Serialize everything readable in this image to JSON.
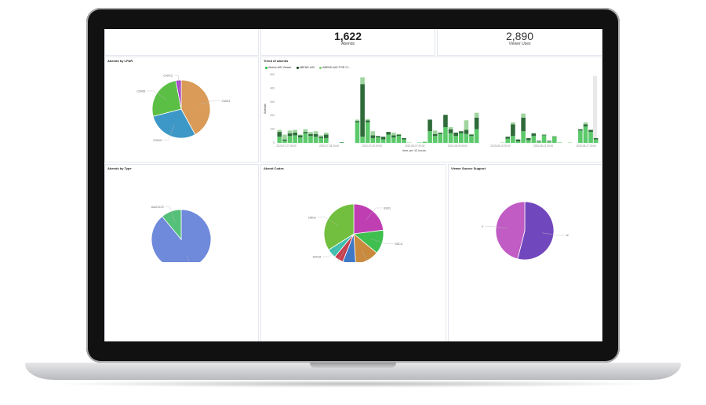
{
  "metrics": [
    {
      "value": "1,622",
      "label": "Abends"
    },
    {
      "value": "2,890",
      "label": "Viewer Uses"
    }
  ],
  "colors": {
    "viewer": "#5cc96b",
    "aid": "#2f6b3a",
    "ci": "#9fd59f",
    "hover": "#e9e9e9"
  },
  "chart_data": [
    {
      "type": "pie",
      "title": "Abends by LPAR",
      "slices": [
        {
          "label": "CW01",
          "value": 42,
          "color": "#d99b57"
        },
        {
          "label": "CW10",
          "value": 29,
          "color": "#3e98c7"
        },
        {
          "label": "CW09",
          "value": 26,
          "color": "#5bbf45"
        },
        {
          "label": "CWCC",
          "value": 3,
          "color": "#a43fc6"
        }
      ]
    },
    {
      "type": "bar",
      "stacked": true,
      "title": "Trend of Abends",
      "xlabel": "time per 12 hours",
      "ylabel": "Abends",
      "ylim": [
        0,
        500
      ],
      "yticks": [
        0,
        100,
        200,
        300,
        400,
        500
      ],
      "legend_position": "top-left",
      "xticks": [
        "2020-07-27 00:00",
        "2020-07-28 00:00",
        "2020-07-29 00:00",
        "2020-08-07 00:00",
        "2020-08-09 00:00",
        "2020-08-10 00:00",
        "2020-08-13 00:00",
        "2020-08-17 00:00"
      ],
      "series": [
        {
          "name": "Abend-AID Viewer",
          "values": [
            45,
            15,
            50,
            55,
            40,
            70,
            50,
            45,
            35,
            35,
            0,
            0,
            3,
            0,
            0,
            150,
            45,
            150,
            35,
            40,
            25,
            60,
            40,
            50,
            25,
            2,
            0,
            3,
            8,
            85,
            50,
            65,
            115,
            70,
            50,
            70,
            65,
            50,
            100,
            0,
            0,
            0,
            0,
            2,
            30,
            50,
            10,
            85,
            20,
            50,
            10,
            55,
            10,
            45,
            3,
            0,
            2,
            0,
            90,
            120,
            80,
            25
          ]
        },
        {
          "name": "ABEND-AID",
          "values": [
            35,
            10,
            20,
            20,
            15,
            10,
            15,
            20,
            10,
            25,
            0,
            0,
            2,
            0,
            0,
            10,
            385,
            15,
            20,
            10,
            20,
            20,
            15,
            10,
            10,
            0,
            0,
            0,
            0,
            85,
            15,
            10,
            90,
            30,
            25,
            15,
            30,
            10,
            85,
            0,
            0,
            0,
            0,
            0,
            15,
            85,
            15,
            100,
            15,
            20,
            5,
            5,
            5,
            3,
            0,
            0,
            0,
            0,
            10,
            15,
            15,
            10
          ]
        },
        {
          "name": "ABEND-AID FOR CI...",
          "values": [
            15,
            35,
            20,
            20,
            5,
            20,
            15,
            20,
            10,
            15,
            0,
            0,
            0,
            0,
            0,
            10,
            50,
            10,
            30,
            0,
            0,
            0,
            20,
            5,
            0,
            0,
            0,
            0,
            0,
            0,
            25,
            0,
            0,
            15,
            0,
            0,
            70,
            5,
            35,
            0,
            0,
            0,
            0,
            0,
            0,
            15,
            0,
            30,
            0,
            0,
            0,
            0,
            0,
            0,
            0,
            0,
            0,
            0,
            0,
            15,
            0,
            0
          ]
        }
      ]
    },
    {
      "type": "pie",
      "title": "Abends by Type",
      "slices": [
        {
          "label": "AA/BATCH",
          "value": 89,
          "color": "#6f89db"
        },
        {
          "label": "AA/CICS",
          "value": 11,
          "color": "#55c07a"
        }
      ]
    },
    {
      "type": "pie",
      "title": "Abend Codes",
      "slices": [
        {
          "label": "S301",
          "value": 23,
          "color": "#bf3fb3"
        },
        {
          "label": "S0C4",
          "value": 13,
          "color": "#3fbf4f"
        },
        {
          "label": "S0C7",
          "value": 13,
          "color": "#c98a3e"
        },
        {
          "label": "",
          "value": 7,
          "color": "#3f78c6"
        },
        {
          "label": "S0C1",
          "value": 5,
          "color": "#c63f4f"
        },
        {
          "label": "S0CB",
          "value": 5,
          "color": "#3fbfae"
        },
        {
          "label": "Other",
          "value": 34,
          "color": "#72bf3f"
        }
      ]
    },
    {
      "type": "pie",
      "title": "Viewer Source Support",
      "slices": [
        {
          "label": "N",
          "value": 54,
          "color": "#7147bd"
        },
        {
          "label": "Y",
          "value": 46,
          "color": "#c05cc4"
        }
      ]
    }
  ]
}
